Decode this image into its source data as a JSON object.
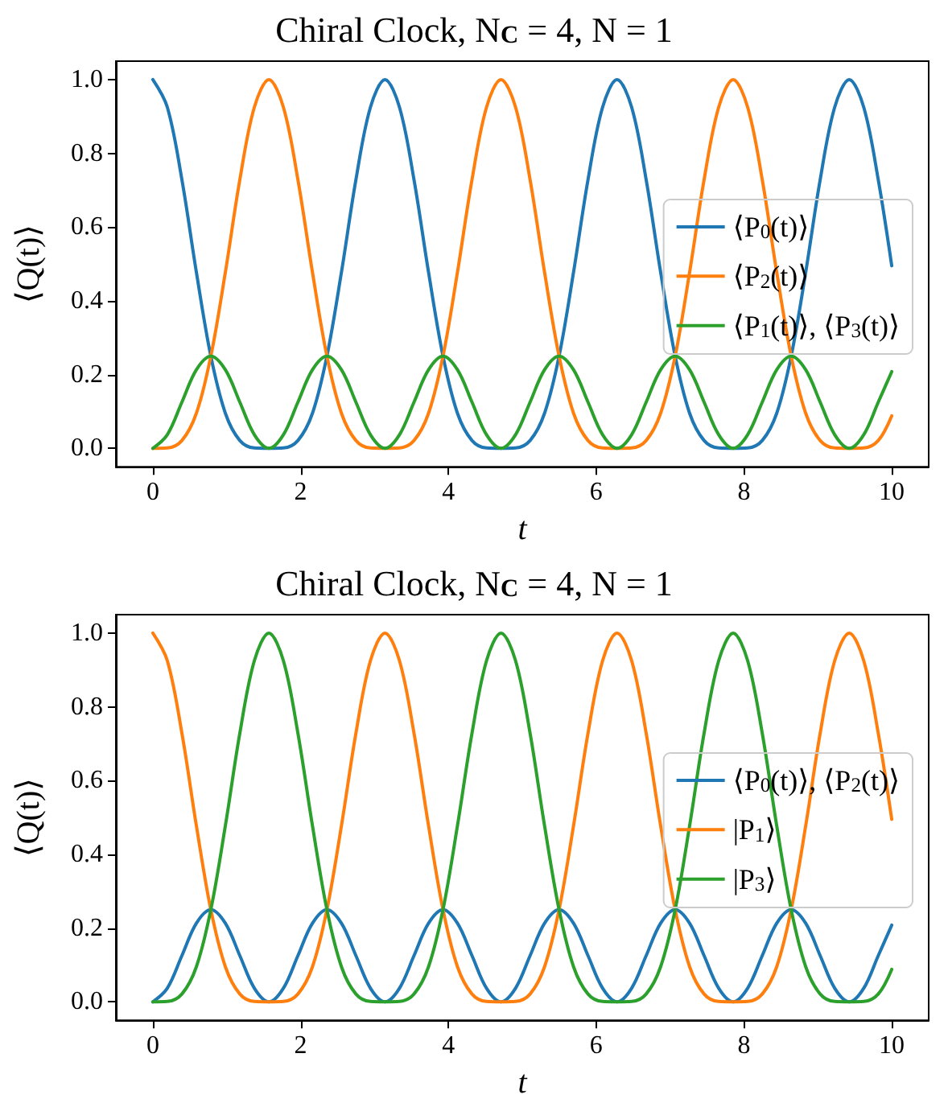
{
  "chart_data": [
    {
      "type": "line",
      "title": "Chiral Clock, N$_{C}$ = 4, N = 1",
      "xlabel": "t",
      "ylabel": "⟨Q(t)⟩",
      "legend": "right",
      "x": [
        0,
        0.196,
        0.393,
        0.589,
        0.785,
        0.982,
        1.178,
        1.374,
        1.571,
        1.767,
        1.963,
        2.16,
        2.356,
        2.553,
        2.749,
        2.945,
        3.142,
        3.338,
        3.534,
        3.731,
        3.927,
        4.123,
        4.32,
        4.516,
        4.712,
        4.909,
        5.105,
        5.301,
        5.498,
        5.694,
        5.89,
        6.087,
        6.283,
        6.48,
        6.676,
        6.872,
        7.069,
        7.265,
        7.461,
        7.658,
        7.854,
        8.05,
        8.247,
        8.443,
        8.639,
        8.836,
        9.032,
        9.228,
        9.425,
        9.621,
        9.817,
        10
      ],
      "xlim": [
        -0.5,
        10.5
      ],
      "xticks": [
        0,
        2,
        4,
        6,
        8,
        10
      ],
      "ylim": [
        -0.05,
        1.05
      ],
      "yticks": [
        {
          "value": 0,
          "label": "0.0"
        },
        {
          "value": 0.2,
          "label": "0.2"
        },
        {
          "value": 0.4,
          "label": "0.4"
        },
        {
          "value": 0.6,
          "label": "0.6"
        },
        {
          "value": 0.8,
          "label": "0.8"
        },
        {
          "value": 1,
          "label": "1.0"
        }
      ],
      "series": [
        {
          "name": "⟨P$_{0}$(t)⟩",
          "color": "#1f77b4",
          "values": [
            1,
            0.925,
            0.729,
            0.478,
            0.25,
            0.095,
            0.021,
            0.001,
            0,
            0.001,
            0.021,
            0.095,
            0.25,
            0.478,
            0.729,
            0.925,
            1,
            0.925,
            0.729,
            0.478,
            0.25,
            0.095,
            0.021,
            0.001,
            0,
            0.001,
            0.021,
            0.095,
            0.25,
            0.478,
            0.729,
            0.925,
            1,
            0.925,
            0.729,
            0.478,
            0.25,
            0.095,
            0.021,
            0.001,
            0,
            0.001,
            0.021,
            0.095,
            0.25,
            0.478,
            0.729,
            0.925,
            1,
            0.925,
            0.729,
            0.495
          ]
        },
        {
          "name": "⟨P$_{2}$(t)⟩",
          "color": "#ff7f0e",
          "values": [
            0,
            0.001,
            0.021,
            0.095,
            0.25,
            0.478,
            0.729,
            0.925,
            1,
            0.925,
            0.729,
            0.478,
            0.25,
            0.095,
            0.021,
            0.001,
            0,
            0.001,
            0.021,
            0.095,
            0.25,
            0.478,
            0.729,
            0.925,
            1,
            0.925,
            0.729,
            0.478,
            0.25,
            0.095,
            0.021,
            0.001,
            0,
            0.001,
            0.021,
            0.095,
            0.25,
            0.478,
            0.729,
            0.925,
            1,
            0.925,
            0.729,
            0.478,
            0.25,
            0.095,
            0.021,
            0.001,
            0,
            0.001,
            0.021,
            0.088
          ]
        },
        {
          "name": "⟨P$_{1}$(t)⟩, ⟨P$_{3}$(t)⟩",
          "color": "#2ca02c",
          "values": [
            0,
            0.037,
            0.125,
            0.213,
            0.25,
            0.213,
            0.125,
            0.037,
            0,
            0.037,
            0.125,
            0.213,
            0.25,
            0.213,
            0.125,
            0.037,
            0,
            0.037,
            0.125,
            0.213,
            0.25,
            0.213,
            0.125,
            0.037,
            0,
            0.037,
            0.125,
            0.213,
            0.25,
            0.213,
            0.125,
            0.037,
            0,
            0.037,
            0.125,
            0.213,
            0.25,
            0.213,
            0.125,
            0.037,
            0,
            0.037,
            0.125,
            0.213,
            0.25,
            0.213,
            0.125,
            0.037,
            0,
            0.037,
            0.125,
            0.208
          ]
        }
      ]
    },
    {
      "type": "line",
      "title": "Chiral Clock, N$_{C}$ = 4, N = 1",
      "xlabel": "t",
      "ylabel": "⟨Q(t)⟩",
      "legend": "right",
      "x": [
        0,
        0.196,
        0.393,
        0.589,
        0.785,
        0.982,
        1.178,
        1.374,
        1.571,
        1.767,
        1.963,
        2.16,
        2.356,
        2.553,
        2.749,
        2.945,
        3.142,
        3.338,
        3.534,
        3.731,
        3.927,
        4.123,
        4.32,
        4.516,
        4.712,
        4.909,
        5.105,
        5.301,
        5.498,
        5.694,
        5.89,
        6.087,
        6.283,
        6.48,
        6.676,
        6.872,
        7.069,
        7.265,
        7.461,
        7.658,
        7.854,
        8.05,
        8.247,
        8.443,
        8.639,
        8.836,
        9.032,
        9.228,
        9.425,
        9.621,
        9.817,
        10
      ],
      "xlim": [
        -0.5,
        10.5
      ],
      "xticks": [
        0,
        2,
        4,
        6,
        8,
        10
      ],
      "ylim": [
        -0.05,
        1.05
      ],
      "yticks": [
        {
          "value": 0,
          "label": "0.0"
        },
        {
          "value": 0.2,
          "label": "0.2"
        },
        {
          "value": 0.4,
          "label": "0.4"
        },
        {
          "value": 0.6,
          "label": "0.6"
        },
        {
          "value": 0.8,
          "label": "0.8"
        },
        {
          "value": 1,
          "label": "1.0"
        }
      ],
      "series": [
        {
          "name": "⟨P$_{0}$(t)⟩, ⟨P$_{2}$(t)⟩",
          "color": "#1f77b4",
          "values": [
            0,
            0.037,
            0.125,
            0.213,
            0.25,
            0.213,
            0.125,
            0.037,
            0,
            0.037,
            0.125,
            0.213,
            0.25,
            0.213,
            0.125,
            0.037,
            0,
            0.037,
            0.125,
            0.213,
            0.25,
            0.213,
            0.125,
            0.037,
            0,
            0.037,
            0.125,
            0.213,
            0.25,
            0.213,
            0.125,
            0.037,
            0,
            0.037,
            0.125,
            0.213,
            0.25,
            0.213,
            0.125,
            0.037,
            0,
            0.037,
            0.125,
            0.213,
            0.25,
            0.213,
            0.125,
            0.037,
            0,
            0.037,
            0.125,
            0.208
          ]
        },
        {
          "name": "|P$_{1}$⟩",
          "color": "#ff7f0e",
          "values": [
            1,
            0.925,
            0.729,
            0.478,
            0.25,
            0.095,
            0.021,
            0.001,
            0,
            0.001,
            0.021,
            0.095,
            0.25,
            0.478,
            0.729,
            0.925,
            1,
            0.925,
            0.729,
            0.478,
            0.25,
            0.095,
            0.021,
            0.001,
            0,
            0.001,
            0.021,
            0.095,
            0.25,
            0.478,
            0.729,
            0.925,
            1,
            0.925,
            0.729,
            0.478,
            0.25,
            0.095,
            0.021,
            0.001,
            0,
            0.001,
            0.021,
            0.095,
            0.25,
            0.478,
            0.729,
            0.925,
            1,
            0.925,
            0.729,
            0.495
          ]
        },
        {
          "name": "|P$_{3}$⟩",
          "color": "#2ca02c",
          "values": [
            0,
            0.001,
            0.021,
            0.095,
            0.25,
            0.478,
            0.729,
            0.925,
            1,
            0.925,
            0.729,
            0.478,
            0.25,
            0.095,
            0.021,
            0.001,
            0,
            0.001,
            0.021,
            0.095,
            0.25,
            0.478,
            0.729,
            0.925,
            1,
            0.925,
            0.729,
            0.478,
            0.25,
            0.095,
            0.021,
            0.001,
            0,
            0.001,
            0.021,
            0.095,
            0.25,
            0.478,
            0.729,
            0.925,
            1,
            0.925,
            0.729,
            0.478,
            0.25,
            0.095,
            0.021,
            0.001,
            0,
            0.001,
            0.021,
            0.088
          ]
        }
      ]
    }
  ]
}
